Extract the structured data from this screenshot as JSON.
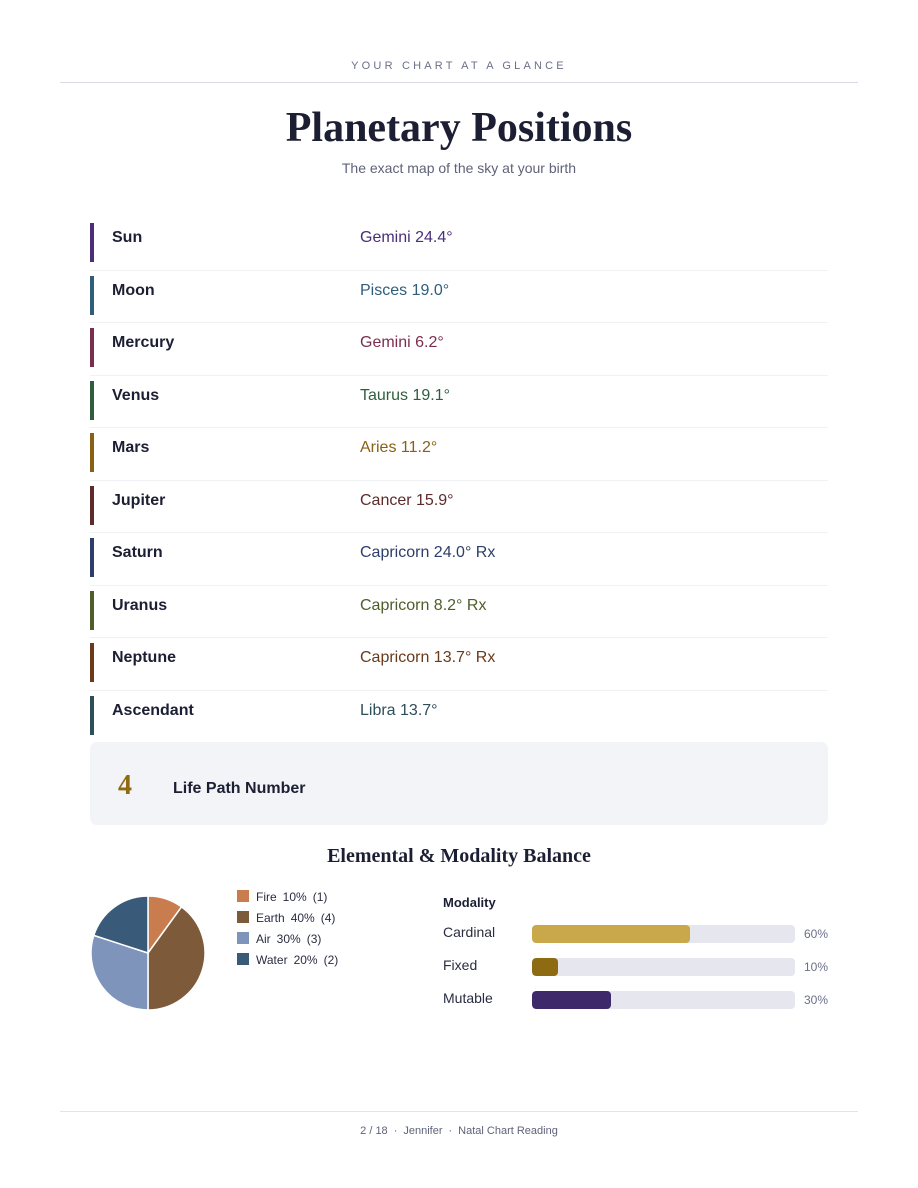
{
  "header": {
    "kicker": "YOUR CHART AT A GLANCE"
  },
  "title": "Planetary Positions",
  "subtitle": "The exact map of the sky at your birth",
  "planets": [
    {
      "name": "Sun",
      "position": "Gemini 24.4°",
      "color": "#4a2e7a"
    },
    {
      "name": "Moon",
      "position": "Pisces 19.0°",
      "color": "#2e5e7a"
    },
    {
      "name": "Mercury",
      "position": "Gemini 6.2°",
      "color": "#7a2e4e"
    },
    {
      "name": "Venus",
      "position": "Taurus 19.1°",
      "color": "#2e5e3e"
    },
    {
      "name": "Mars",
      "position": "Aries 11.2°",
      "color": "#8a6014"
    },
    {
      "name": "Jupiter",
      "position": "Cancer 15.9°",
      "color": "#5e2a2a"
    },
    {
      "name": "Saturn",
      "position": "Capricorn 24.0° Rx",
      "color": "#2e3e6a"
    },
    {
      "name": "Uranus",
      "position": "Capricorn 8.2° Rx",
      "color": "#4e5e2a"
    },
    {
      "name": "Neptune",
      "position": "Capricorn 13.7° Rx",
      "color": "#6a3a1a"
    },
    {
      "name": "Ascendant",
      "position": "Libra 13.7°",
      "color": "#2e4e5a"
    }
  ],
  "life_path": {
    "number": "4",
    "label": "Life Path Number"
  },
  "balance": {
    "title": "Elemental & Modality Balance",
    "elements": [
      {
        "name": "Fire",
        "percent": "10%",
        "count": "(1)",
        "value": 10,
        "color": "#c97d4f"
      },
      {
        "name": "Earth",
        "percent": "40%",
        "count": "(4)",
        "value": 40,
        "color": "#7c5a3a"
      },
      {
        "name": "Air",
        "percent": "30%",
        "count": "(3)",
        "value": 30,
        "color": "#7f94bb"
      },
      {
        "name": "Water",
        "percent": "20%",
        "count": "(2)",
        "value": 20,
        "color": "#3a5a7a"
      }
    ],
    "modality_title": "Modality",
    "modalities": [
      {
        "name": "Cardinal",
        "percent": "60%",
        "value": 60,
        "color": "#c8a84a"
      },
      {
        "name": "Fixed",
        "percent": "10%",
        "value": 10,
        "color": "#8e6a13"
      },
      {
        "name": "Mutable",
        "percent": "30%",
        "value": 30,
        "color": "#3e2a6a"
      }
    ]
  },
  "footer": {
    "page": "2 / 18",
    "name": "Jennifer",
    "doc": "Natal Chart Reading"
  }
}
